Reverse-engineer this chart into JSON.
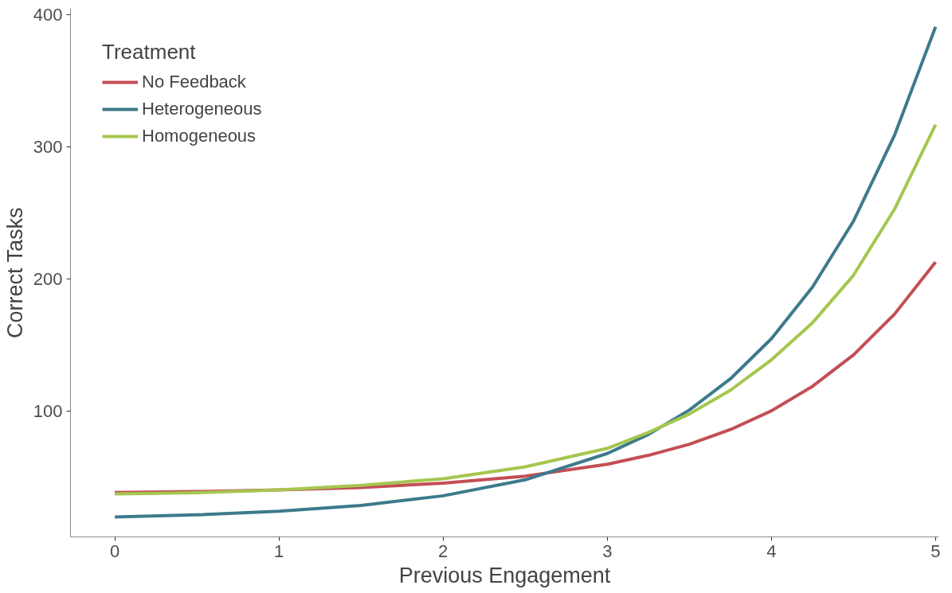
{
  "chart_data": {
    "type": "line",
    "xlabel": "Previous Engagement",
    "ylabel": "Correct Tasks",
    "legend_title": "Treatment",
    "legend": "top left",
    "grid": false,
    "line_style": "solid",
    "marker": "none",
    "x": [
      0,
      0.5,
      1,
      1.5,
      2,
      2.5,
      3,
      3.25,
      3.5,
      3.75,
      4,
      4.25,
      4.5,
      4.75,
      5
    ],
    "xlim": [
      -0.27,
      5.02
    ],
    "xticks": [
      0,
      1,
      2,
      3,
      4,
      5
    ],
    "ylim": [
      5,
      405
    ],
    "yticks": [
      100,
      200,
      300,
      400
    ],
    "series": [
      {
        "name": "No Feedback",
        "color": "#c44e55",
        "values": [
          38.6,
          39.3,
          40.5,
          42.4,
          45.6,
          51,
          60,
          66.7,
          75.1,
          86.2,
          100.4,
          118.9,
          142.7,
          173.6,
          213
        ]
      },
      {
        "name": "Heterogeneous",
        "color": "#3d7a8c",
        "values": [
          20,
          21.7,
          24.4,
          28.8,
          36.1,
          48.2,
          68.1,
          82.5,
          101,
          124.6,
          155,
          194,
          244,
          309,
          391
        ]
      },
      {
        "name": "Homogeneous",
        "color": "#a5c64f",
        "values": [
          37.5,
          38.5,
          40.5,
          44,
          49,
          58,
          72,
          84,
          98,
          116,
          139,
          167,
          203,
          253,
          317
        ]
      }
    ]
  }
}
